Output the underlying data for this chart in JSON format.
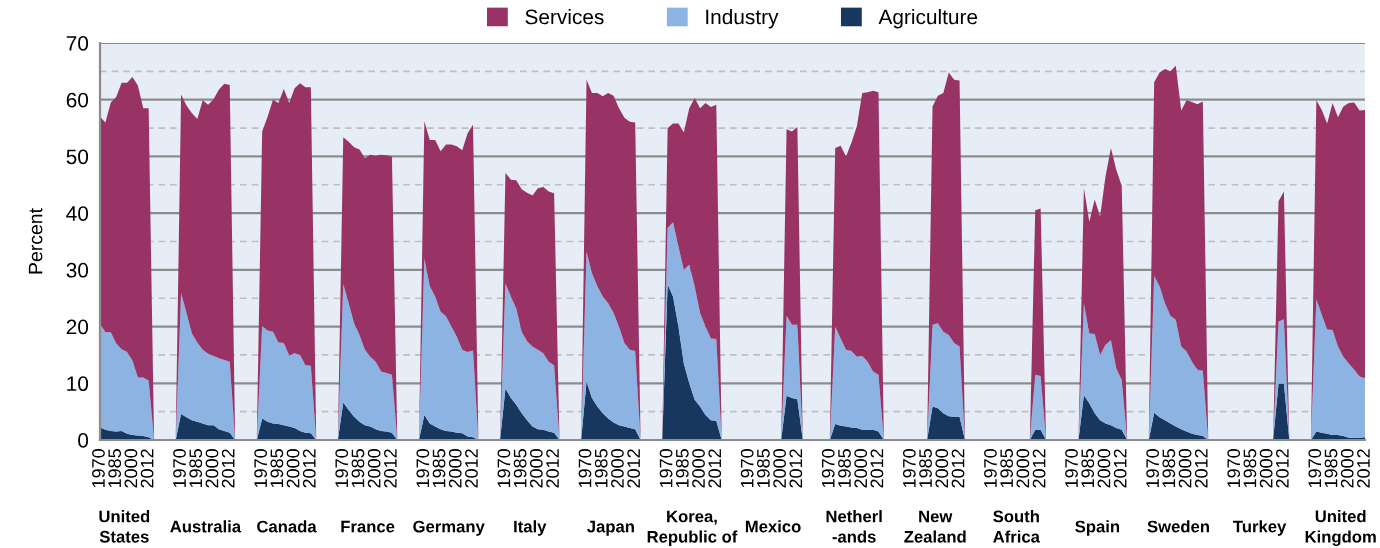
{
  "chart_data": {
    "type": "area",
    "stacked": true,
    "ylabel": "Percent",
    "ylim": [
      0,
      70
    ],
    "yticks": [
      0,
      10,
      20,
      30,
      40,
      50,
      60,
      70
    ],
    "grid": "y",
    "legend": "top",
    "categories": [
      "1970",
      null,
      null,
      "1985",
      null,
      null,
      "2000",
      null,
      null,
      "2012",
      null,
      null,
      null,
      null,
      null,
      "1970",
      null,
      null,
      "1985",
      null,
      null,
      "2000",
      null,
      null,
      "2012",
      null,
      null,
      null,
      null,
      null,
      "1970",
      null,
      null,
      "1985",
      null,
      null,
      "2000",
      null,
      null,
      "2012",
      null,
      null,
      null,
      null,
      null,
      "1970",
      null,
      null,
      "1985",
      null,
      null,
      "2000",
      null,
      null,
      "2012",
      null,
      null,
      null,
      null,
      null,
      "1970",
      null,
      null,
      "1985",
      null,
      null,
      "2000",
      null,
      null,
      "2012",
      null,
      null,
      null,
      null,
      null,
      "1970",
      null,
      null,
      "1985",
      null,
      null,
      "2000",
      null,
      null,
      "2012",
      null,
      null,
      null,
      null,
      null,
      "1970",
      null,
      null,
      "1985",
      null,
      null,
      "2000",
      null,
      null,
      "2012",
      null,
      null,
      null,
      null,
      null,
      "1970",
      null,
      null,
      "1985",
      null,
      null,
      "2000",
      null,
      null,
      "2012",
      null,
      null,
      null,
      null,
      null,
      "1970",
      null,
      null,
      "1985",
      null,
      null,
      "2000",
      null,
      null,
      "2012",
      null,
      null,
      null,
      null,
      null,
      "1970",
      null,
      null,
      "1985",
      null,
      null,
      "2000",
      null,
      null,
      "2012",
      null,
      null,
      null,
      null,
      null,
      "1970",
      null,
      null,
      "1985",
      null,
      null,
      "2000",
      null,
      null,
      "2012",
      null,
      null,
      null,
      null,
      null,
      "1970",
      null,
      null,
      "1985",
      null,
      null,
      "2000",
      null,
      null,
      "2012",
      null,
      null,
      null,
      null,
      null,
      "1970",
      null,
      null,
      "1985",
      null,
      null,
      "2000",
      null,
      null,
      "2012",
      null,
      null,
      null,
      null,
      null,
      "1970",
      null,
      null,
      "1985",
      null,
      null,
      "2000",
      null,
      null,
      "2012",
      null,
      null,
      null,
      null,
      null,
      "1970",
      null,
      null,
      "1985",
      null,
      null,
      "2000",
      null,
      null,
      "2012",
      null,
      null,
      null,
      null,
      null,
      "1970",
      null,
      null,
      "1985",
      null,
      null,
      "2000",
      null,
      null,
      "2012"
    ],
    "series": [
      {
        "name": "Agriculture",
        "color": "#17375e",
        "values": [
          2.2,
          1.8,
          1.6,
          1.5,
          1.6,
          1.1,
          0.9,
          0.8,
          0.7,
          0.5,
          null,
          null,
          null,
          null,
          null,
          4.6,
          4,
          3.5,
          3.2,
          2.9,
          2.6,
          2.6,
          1.9,
          1.6,
          1.3,
          null,
          null,
          null,
          null,
          null,
          3.8,
          3.2,
          2.9,
          2.8,
          2.6,
          2.4,
          2.1,
          1.6,
          1.3,
          1.2,
          null,
          null,
          null,
          null,
          null,
          6.6,
          5.3,
          4.1,
          3.2,
          2.6,
          2.4,
          1.9,
          1.6,
          1.5,
          1.3,
          null,
          null,
          null,
          null,
          null,
          4.4,
          2.9,
          2.4,
          1.9,
          1.6,
          1.5,
          1.3,
          1.2,
          0.6,
          0.5,
          null,
          null,
          null,
          null,
          null,
          9.1,
          7.4,
          6.2,
          4.7,
          3.5,
          2.4,
          1.9,
          1.8,
          1.5,
          1.3,
          null,
          null,
          null,
          null,
          null,
          10.3,
          7.4,
          5.9,
          4.7,
          3.8,
          3.1,
          2.6,
          2.4,
          2.1,
          1.9,
          null,
          null,
          null,
          null,
          null,
          27.4,
          25.3,
          20,
          13.5,
          10,
          7.1,
          5.9,
          4.4,
          3.5,
          3.4,
          null,
          null,
          null,
          null,
          null,
          null,
          null,
          null,
          null,
          null,
          null,
          null,
          7.8,
          7.4,
          7.2,
          null,
          null,
          null,
          null,
          null,
          null,
          2.8,
          2.5,
          2.4,
          2.2,
          2.1,
          1.8,
          1.8,
          1.8,
          1.5,
          null,
          null,
          null,
          null,
          null,
          null,
          null,
          null,
          null,
          5.9,
          5.6,
          4.7,
          4.2,
          4.1,
          4.1,
          null,
          null,
          null,
          null,
          null,
          null,
          null,
          null,
          null,
          null,
          null,
          null,
          null,
          1.8,
          1.8,
          null,
          null,
          null,
          null,
          null,
          null,
          null,
          7.9,
          6.5,
          4.7,
          3.5,
          2.9,
          2.6,
          2.1,
          1.8,
          null,
          null,
          null,
          null,
          null,
          4.8,
          4,
          3.5,
          2.9,
          2.4,
          1.9,
          1.5,
          1.1,
          0.9,
          0.7,
          null,
          null,
          null,
          null,
          null,
          null,
          null,
          null,
          null,
          null,
          null,
          null,
          null,
          9.9,
          9.9,
          null,
          null,
          null,
          null,
          null,
          1.5,
          1.3,
          1.1,
          0.9,
          0.9,
          0.7,
          0.4,
          0.4,
          0.4,
          0.5
        ]
      },
      {
        "name": "Industry",
        "color": "#8db3e2",
        "values": [
          18.3,
          17.2,
          17.4,
          15.5,
          14.4,
          14.4,
          13.1,
          10.2,
          10.3,
          10.0,
          null,
          null,
          null,
          null,
          null,
          21.3,
          18.4,
          15.3,
          14.0,
          13.0,
          12.6,
          12.2,
          12.5,
          12.5,
          12.5,
          null,
          null,
          null,
          null,
          null,
          16.3,
          16.1,
          16.2,
          14.4,
          14.5,
          12.5,
          13.2,
          13.4,
          11.9,
          11.9,
          null,
          null,
          null,
          null,
          null,
          20.9,
          18.8,
          16.5,
          15.3,
          13.3,
          12.3,
          11.9,
          10.5,
          10.3,
          10.2,
          null,
          null,
          null,
          null,
          null,
          27.6,
          24.2,
          22.9,
          20.7,
          20.2,
          18.5,
          16.9,
          14.7,
          14.9,
          15.3,
          null,
          null,
          null,
          null,
          null,
          18.5,
          17.9,
          17.0,
          14.4,
          13.9,
          14.1,
          14.0,
          13.5,
          12.3,
          11.9,
          null,
          null,
          null,
          null,
          null,
          22.9,
          22.0,
          21.2,
          20.6,
          20.3,
          19.3,
          17.4,
          14.7,
          13.8,
          13.8,
          null,
          null,
          null,
          null,
          null,
          10.0,
          13.1,
          14.1,
          16.5,
          20.9,
          20.0,
          16.5,
          15.6,
          14.4,
          14.4,
          null,
          null,
          null,
          null,
          null,
          null,
          null,
          null,
          null,
          null,
          null,
          null,
          14.1,
          12.9,
          13.1,
          null,
          null,
          null,
          null,
          null,
          null,
          17.2,
          15.4,
          13.5,
          13.5,
          12.6,
          13.0,
          12.0,
          10.3,
          10.0,
          null,
          null,
          null,
          null,
          null,
          null,
          null,
          null,
          null,
          14.4,
          15.0,
          14.4,
          14.3,
          13.0,
          12.4,
          null,
          null,
          null,
          null,
          null,
          null,
          null,
          null,
          null,
          null,
          null,
          null,
          null,
          9.7,
          9.5,
          null,
          null,
          null,
          null,
          null,
          null,
          null,
          16.2,
          12.3,
          14.0,
          11.5,
          13.9,
          15.0,
          10.5,
          8.8,
          null,
          null,
          null,
          null,
          null,
          24.1,
          23.1,
          20.6,
          19.0,
          18.8,
          14.6,
          14.1,
          12.7,
          11.5,
          11.5,
          null,
          null,
          null,
          null,
          null,
          null,
          null,
          null,
          null,
          null,
          null,
          null,
          null,
          11.0,
          11.4,
          null,
          null,
          null,
          null,
          null,
          23.3,
          20.8,
          18.4,
          18.5,
          15.6,
          14.0,
          13.1,
          12.0,
          10.8,
          10.4
        ]
      },
      {
        "name": "Services",
        "color": "#993366",
        "values": [
          36.5,
          37,
          40.5,
          43.5,
          47,
          47.5,
          50,
          51.5,
          47.5,
          48,
          null,
          null,
          null,
          null,
          null,
          35.0,
          36.6,
          38.8,
          39.4,
          44.0,
          43.9,
          45.3,
          47.4,
          48.7,
          48.8,
          null,
          null,
          null,
          null,
          null,
          34.3,
          37.7,
          40.9,
          42.2,
          44.8,
          44.5,
          46.7,
          47.9,
          49.0,
          49.1,
          null,
          null,
          null,
          null,
          null,
          25.9,
          28.5,
          31.0,
          32.7,
          33.8,
          35.6,
          36.3,
          38.2,
          38.4,
          38.5,
          null,
          null,
          null,
          null,
          null,
          24.2,
          25.8,
          27.6,
          28.3,
          30.3,
          32.1,
          33.6,
          35.2,
          38.6,
          39.8,
          null,
          null,
          null,
          null,
          null,
          19.5,
          20.6,
          22.6,
          25.1,
          26.2,
          26.6,
          28.5,
          29.3,
          30.0,
          30.3,
          null,
          null,
          null,
          null,
          null,
          30.3,
          31.8,
          34.1,
          35.3,
          37.1,
          38.3,
          38.5,
          39.7,
          40.2,
          40.3,
          null,
          null,
          null,
          null,
          null,
          17.6,
          17.4,
          21.7,
          24.2,
          27.6,
          33.2,
          36.1,
          39.4,
          40.8,
          41.3,
          null,
          null,
          null,
          null,
          null,
          null,
          null,
          null,
          null,
          null,
          null,
          null,
          32.9,
          34.1,
          34.9,
          null,
          null,
          null,
          null,
          null,
          null,
          31.5,
          34.0,
          34.1,
          36.7,
          40.6,
          46.4,
          47.5,
          49.5,
          49.8,
          null,
          null,
          null,
          null,
          null,
          null,
          null,
          null,
          null,
          38.5,
          40.1,
          42.1,
          46.3,
          46.4,
          46.9,
          null,
          null,
          null,
          null,
          null,
          null,
          null,
          null,
          null,
          null,
          null,
          null,
          null,
          29.0,
          29.5,
          null,
          null,
          null,
          null,
          null,
          null,
          null,
          20.3,
          19.7,
          23.7,
          24.4,
          29.7,
          33.9,
          35.0,
          34.2,
          null,
          null,
          null,
          null,
          null,
          34.2,
          37.7,
          41.3,
          43.1,
          44.8,
          41.6,
          44.3,
          45.8,
          46.8,
          47.5,
          null,
          null,
          null,
          null,
          null,
          null,
          null,
          null,
          null,
          null,
          null,
          null,
          null,
          21.2,
          22.5,
          null,
          null,
          null,
          null,
          null,
          35.1,
          36.1,
          36.3,
          40.0,
          40.4,
          44.1,
          45.9,
          47.1,
          46.9,
          47.3
        ]
      }
    ],
    "annotations": [
      "United\nStates",
      "Australia",
      "Canada",
      "France",
      "Germany",
      "Italy",
      "Japan",
      "Korea,\nRepublic of",
      "Mexico",
      "Netherl\n-ands",
      "New\nZealand",
      "South\nAfrica",
      "Spain",
      "Sweden",
      "Turkey",
      "United\nKingdom"
    ]
  }
}
